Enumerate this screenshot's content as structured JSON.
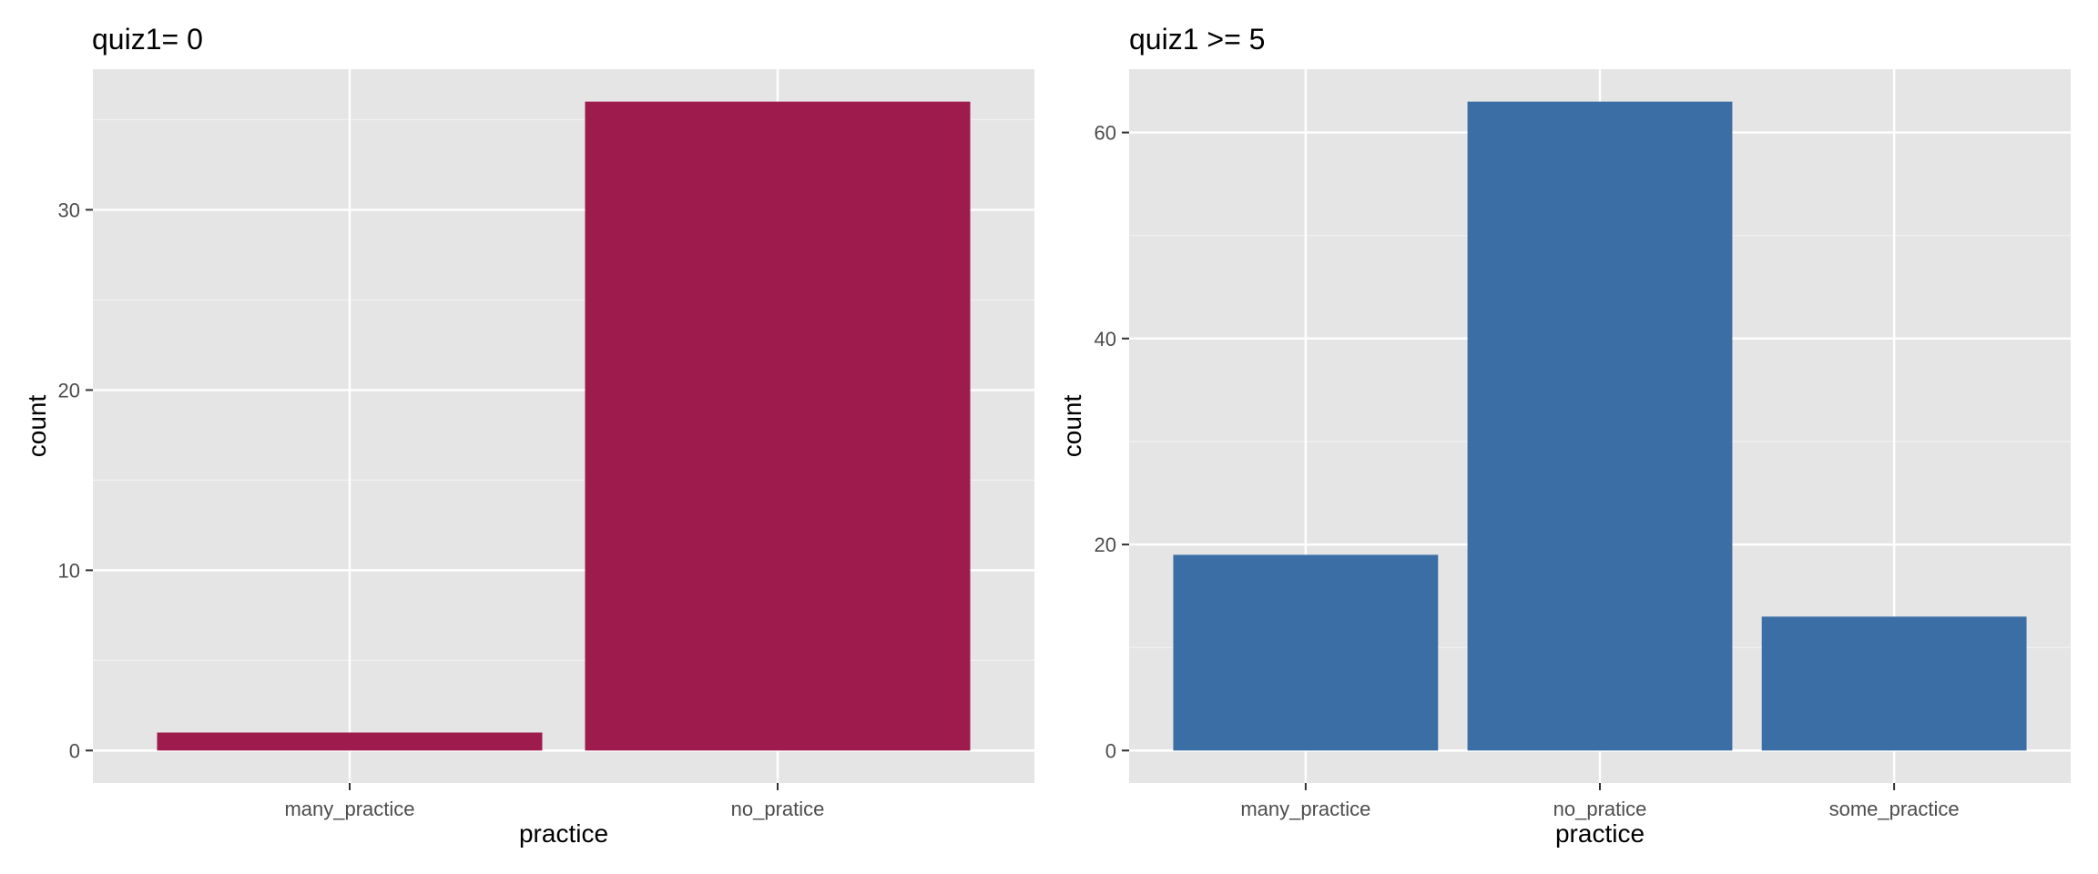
{
  "chart_data": [
    {
      "type": "bar",
      "title": "quiz1= 0",
      "xlabel": "practice",
      "ylabel": "count",
      "categories": [
        "many_practice",
        "no_pratice"
      ],
      "values": [
        1,
        36
      ],
      "ylim": [
        -1.8,
        37.8
      ],
      "yticks": [
        0,
        10,
        20,
        30
      ],
      "grid": true,
      "bar_color": "#9e1b4d",
      "panel_background": "#e5e5e5"
    },
    {
      "type": "bar",
      "title": "quiz1 >= 5",
      "xlabel": "practice",
      "ylabel": "count",
      "categories": [
        "many_practice",
        "no_pratice",
        "some_practice"
      ],
      "values": [
        19,
        63,
        13
      ],
      "ylim": [
        -3.15,
        66.15
      ],
      "yticks": [
        0,
        20,
        40,
        60
      ],
      "grid": true,
      "bar_color": "#3a6ea5",
      "panel_background": "#e5e5e5"
    }
  ]
}
